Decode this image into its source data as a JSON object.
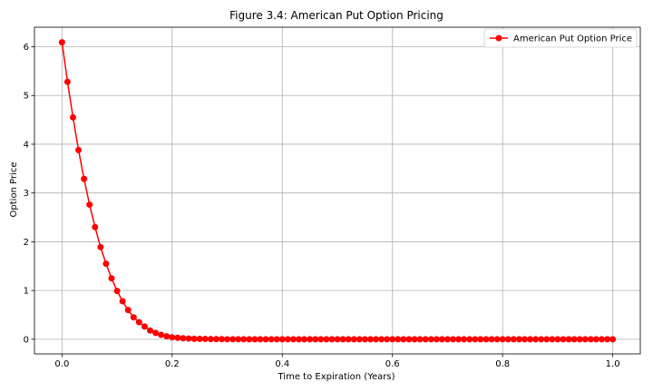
{
  "chart_data": {
    "type": "line",
    "title": "Figure 3.4: American Put Option Pricing",
    "xlabel": "Time to Expiration (Years)",
    "ylabel": "Option Price",
    "xlim": [
      -0.05,
      1.05
    ],
    "ylim": [
      -0.3,
      6.4
    ],
    "xticks": [
      0.0,
      0.2,
      0.4,
      0.6,
      0.8,
      1.0
    ],
    "xtick_labels": [
      "0.0",
      "0.2",
      "0.4",
      "0.6",
      "0.8",
      "1.0"
    ],
    "yticks": [
      0,
      1,
      2,
      3,
      4,
      5,
      6
    ],
    "ytick_labels": [
      "0",
      "1",
      "2",
      "3",
      "4",
      "5",
      "6"
    ],
    "grid": true,
    "legend_position": "top-right",
    "series": [
      {
        "name": "American Put Option Price",
        "color": "#ff0000",
        "marker": "circle",
        "x": [
          0.0,
          0.01,
          0.02,
          0.03,
          0.04,
          0.05,
          0.06,
          0.07,
          0.08,
          0.09,
          0.1,
          0.11,
          0.12,
          0.13,
          0.14,
          0.15,
          0.16,
          0.17,
          0.18,
          0.19,
          0.2,
          0.21,
          0.22,
          0.23,
          0.24,
          0.25,
          0.26,
          0.27,
          0.28,
          0.29,
          0.3,
          0.31,
          0.32,
          0.33,
          0.34,
          0.35,
          0.36,
          0.37,
          0.38,
          0.39,
          0.4,
          0.41,
          0.42,
          0.43,
          0.44,
          0.45,
          0.46,
          0.47,
          0.48,
          0.49,
          0.5,
          0.51,
          0.52,
          0.53,
          0.54,
          0.55,
          0.56,
          0.57,
          0.58,
          0.59,
          0.6,
          0.61,
          0.62,
          0.63,
          0.64,
          0.65,
          0.66,
          0.67,
          0.68,
          0.69,
          0.7,
          0.71,
          0.72,
          0.73,
          0.74,
          0.75,
          0.76,
          0.77,
          0.78,
          0.79,
          0.8,
          0.81,
          0.82,
          0.83,
          0.84,
          0.85,
          0.86,
          0.87,
          0.88,
          0.89,
          0.9,
          0.91,
          0.92,
          0.93,
          0.94,
          0.95,
          0.96,
          0.97,
          0.98,
          0.99,
          1.0
        ],
        "y": [
          6.09,
          5.28,
          4.55,
          3.88,
          3.29,
          2.76,
          2.3,
          1.89,
          1.55,
          1.25,
          0.99,
          0.78,
          0.6,
          0.45,
          0.35,
          0.26,
          0.18,
          0.13,
          0.09,
          0.06,
          0.04,
          0.03,
          0.02,
          0.015,
          0.01,
          0.008,
          0.006,
          0.004,
          0.003,
          0.002,
          0.001,
          0.001,
          0.001,
          0,
          0,
          0,
          0,
          0,
          0,
          0,
          0,
          0,
          0,
          0,
          0,
          0,
          0,
          0,
          0,
          0,
          0,
          0,
          0,
          0,
          0,
          0,
          0,
          0,
          0,
          0,
          0,
          0,
          0,
          0,
          0,
          0,
          0,
          0,
          0,
          0,
          0,
          0,
          0,
          0,
          0,
          0,
          0,
          0,
          0,
          0,
          0,
          0,
          0,
          0,
          0,
          0,
          0,
          0,
          0,
          0,
          0,
          0,
          0,
          0,
          0,
          0,
          0,
          0,
          0,
          0,
          0
        ]
      }
    ]
  }
}
